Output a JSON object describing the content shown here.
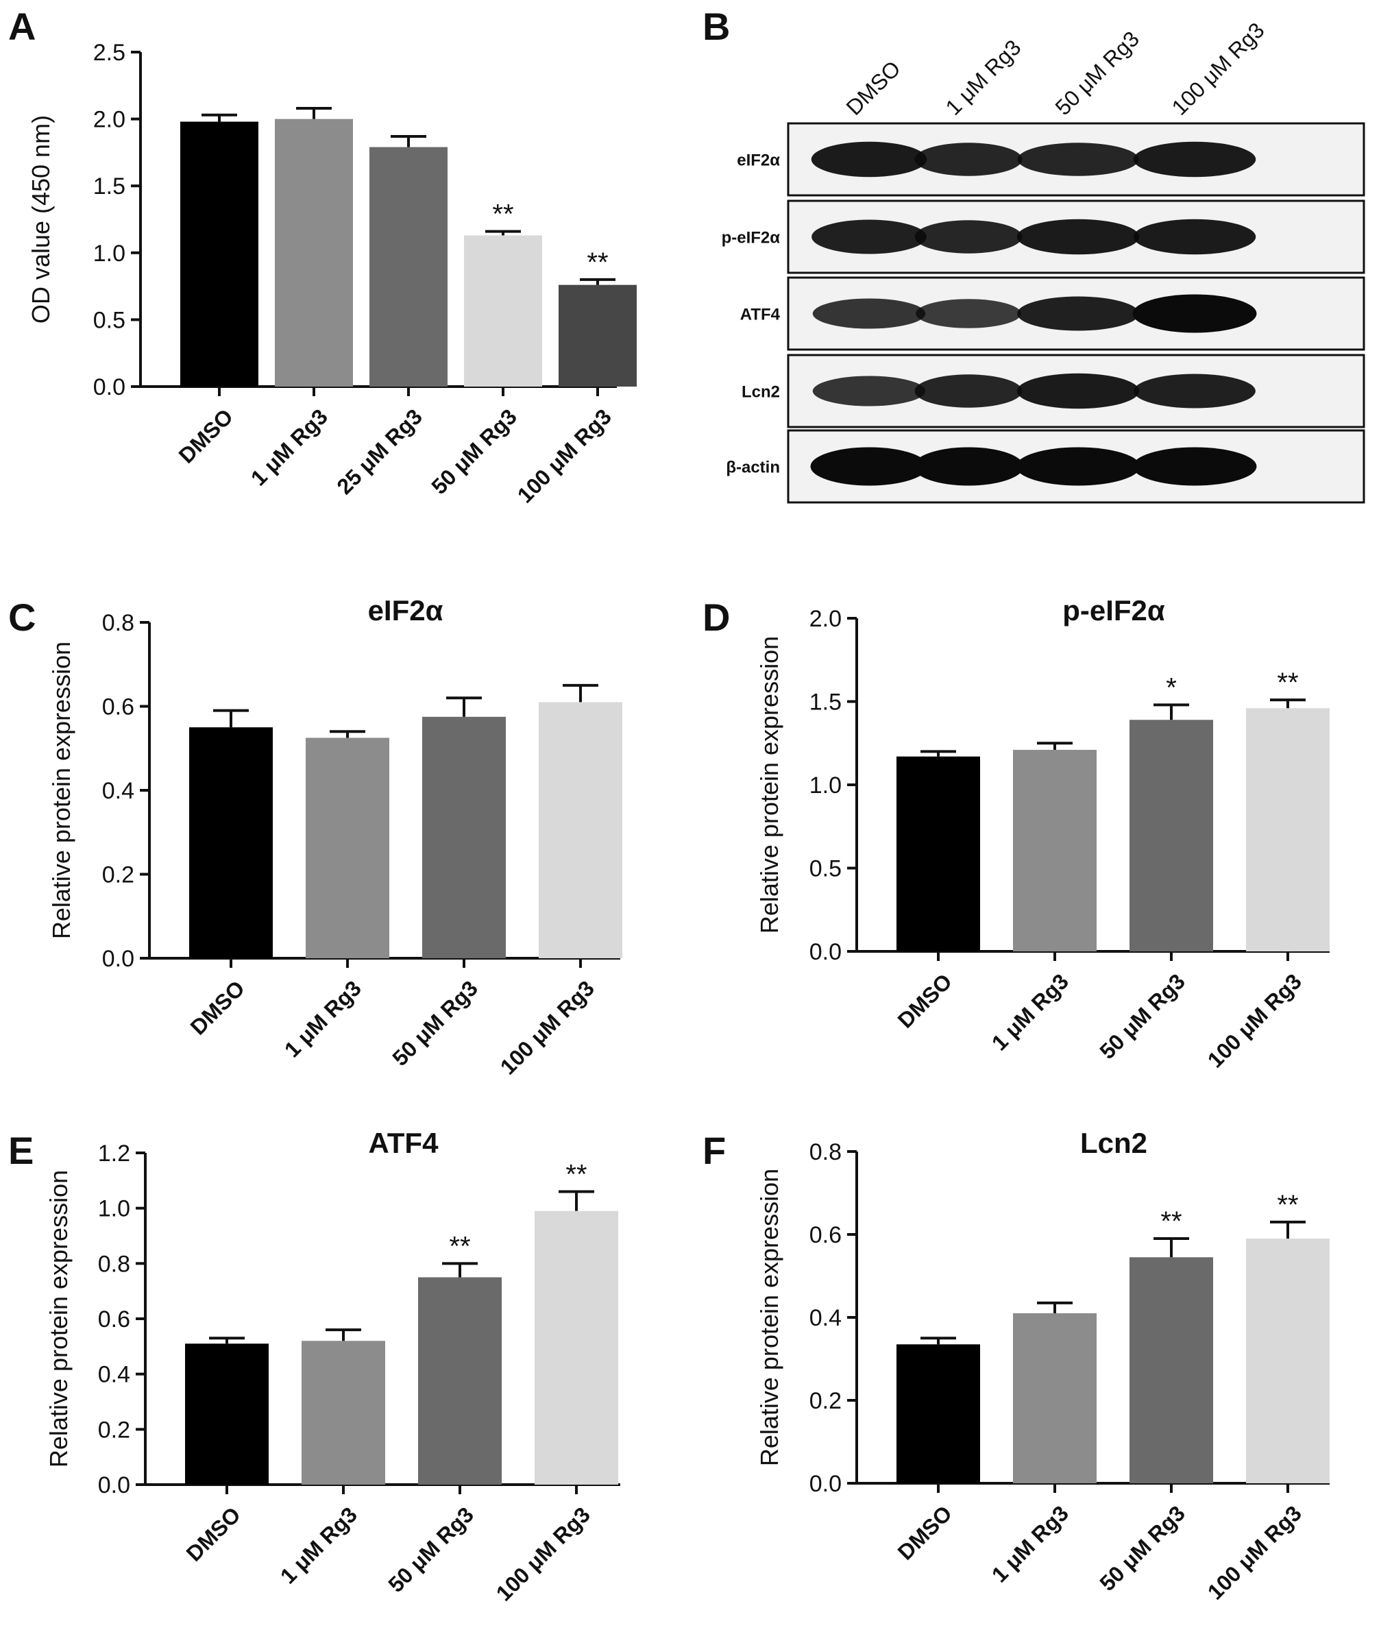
{
  "chart_data": [
    {
      "panel": "A",
      "type": "bar",
      "title": "",
      "xlabel": "",
      "ylabel": "OD value (450 nm)",
      "categories": [
        "DMSO",
        "1 μM Rg3",
        "25 μM Rg3",
        "50 μM Rg3",
        "100 μM Rg3"
      ],
      "values": [
        1.98,
        2.0,
        1.79,
        1.13,
        0.76
      ],
      "errors": [
        0.05,
        0.08,
        0.08,
        0.03,
        0.04
      ],
      "significance": [
        "",
        "",
        "",
        "**",
        "**"
      ],
      "colors": [
        "#000000",
        "#8c8c8c",
        "#6a6a6a",
        "#d9d9d9",
        "#474747"
      ],
      "ylim": [
        0,
        2.5
      ],
      "yticks": [
        "0.0",
        "0.5",
        "1.0",
        "1.5",
        "2.0",
        "2.5"
      ],
      "grid": false
    },
    {
      "panel": "C",
      "type": "bar",
      "title": "eIF2α",
      "xlabel": "",
      "ylabel": "Relative protein expression",
      "categories": [
        "DMSO",
        "1 μM Rg3",
        "50 μM Rg3",
        "100 μM Rg3"
      ],
      "values": [
        0.55,
        0.525,
        0.575,
        0.61
      ],
      "errors": [
        0.04,
        0.015,
        0.045,
        0.04
      ],
      "significance": [
        "",
        "",
        "",
        ""
      ],
      "colors": [
        "#000000",
        "#8c8c8c",
        "#6a6a6a",
        "#d9d9d9"
      ],
      "ylim": [
        0,
        0.8
      ],
      "yticks": [
        "0.0",
        "0.2",
        "0.4",
        "0.6",
        "0.8"
      ],
      "grid": false
    },
    {
      "panel": "D",
      "type": "bar",
      "title": "p-eIF2α",
      "xlabel": "",
      "ylabel": "Relative protein expression",
      "categories": [
        "DMSO",
        "1 μM Rg3",
        "50 μM Rg3",
        "100 μM Rg3"
      ],
      "values": [
        1.17,
        1.21,
        1.39,
        1.46
      ],
      "errors": [
        0.03,
        0.04,
        0.09,
        0.05
      ],
      "significance": [
        "",
        "",
        "*",
        "**"
      ],
      "colors": [
        "#000000",
        "#8c8c8c",
        "#6a6a6a",
        "#d9d9d9"
      ],
      "ylim": [
        0,
        2.0
      ],
      "yticks": [
        "0.0",
        "0.5",
        "1.0",
        "1.5",
        "2.0"
      ],
      "grid": false
    },
    {
      "panel": "E",
      "type": "bar",
      "title": "ATF4",
      "xlabel": "",
      "ylabel": "Relative protein expression",
      "categories": [
        "DMSO",
        "1 μM Rg3",
        "50 μM Rg3",
        "100 μM Rg3"
      ],
      "values": [
        0.51,
        0.52,
        0.75,
        0.99
      ],
      "errors": [
        0.02,
        0.04,
        0.05,
        0.07
      ],
      "significance": [
        "",
        "",
        "**",
        "**"
      ],
      "colors": [
        "#000000",
        "#8c8c8c",
        "#6a6a6a",
        "#d9d9d9"
      ],
      "ylim": [
        0,
        1.2
      ],
      "yticks": [
        "0.0",
        "0.2",
        "0.4",
        "0.6",
        "0.8",
        "1.0",
        "1.2"
      ],
      "grid": false
    },
    {
      "panel": "F",
      "type": "bar",
      "title": "Lcn2",
      "xlabel": "",
      "ylabel": "Relative protein expression",
      "categories": [
        "DMSO",
        "1 μM Rg3",
        "50 μM Rg3",
        "100 μM Rg3"
      ],
      "values": [
        0.335,
        0.41,
        0.545,
        0.59
      ],
      "errors": [
        0.015,
        0.025,
        0.045,
        0.04
      ],
      "significance": [
        "",
        "",
        "**",
        "**"
      ],
      "colors": [
        "#000000",
        "#8c8c8c",
        "#6a6a6a",
        "#d9d9d9"
      ],
      "ylim": [
        0,
        0.8
      ],
      "yticks": [
        "0.0",
        "0.2",
        "0.4",
        "0.6",
        "0.8"
      ],
      "grid": false
    }
  ],
  "blot": {
    "panel": "B",
    "lanes": [
      "DMSO",
      "1 μM Rg3",
      "50 μM Rg3",
      "100 μM Rg3"
    ],
    "rows": [
      {
        "label": "eIF2α",
        "intensity": [
          0.85,
          0.75,
          0.75,
          0.85
        ]
      },
      {
        "label": "p-eIF2α",
        "intensity": [
          0.8,
          0.75,
          0.85,
          0.85
        ]
      },
      {
        "label": "ATF4",
        "intensity": [
          0.6,
          0.55,
          0.8,
          1.0
        ]
      },
      {
        "label": "Lcn2",
        "intensity": [
          0.6,
          0.75,
          0.85,
          0.8
        ]
      },
      {
        "label": "β-actin",
        "intensity": [
          1.0,
          1.0,
          1.0,
          1.0
        ]
      }
    ]
  }
}
